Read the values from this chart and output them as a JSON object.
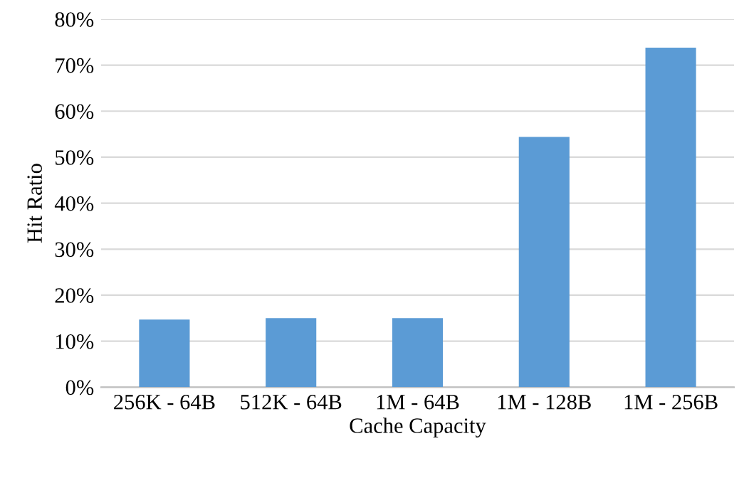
{
  "chart_data": {
    "type": "bar",
    "xlabel": "Cache Capacity",
    "ylabel": "Hit Ratio",
    "categories": [
      "256K - 64B",
      "512K - 64B",
      "1M - 64B",
      "1M - 128B",
      "1M - 256B"
    ],
    "values": [
      14.7,
      15.0,
      15.0,
      54.4,
      73.8
    ],
    "color": "#5b9bd5",
    "ylim": [
      0,
      80
    ],
    "yticks": [
      {
        "value": 0,
        "label": "0%"
      },
      {
        "value": 10,
        "label": "10%"
      },
      {
        "value": 20,
        "label": "20%"
      },
      {
        "value": 30,
        "label": "30%"
      },
      {
        "value": 40,
        "label": "40%"
      },
      {
        "value": 50,
        "label": "50%"
      },
      {
        "value": 60,
        "label": "60%"
      },
      {
        "value": 70,
        "label": "70%"
      },
      {
        "value": 80,
        "label": "80%"
      }
    ],
    "grid": "y"
  }
}
